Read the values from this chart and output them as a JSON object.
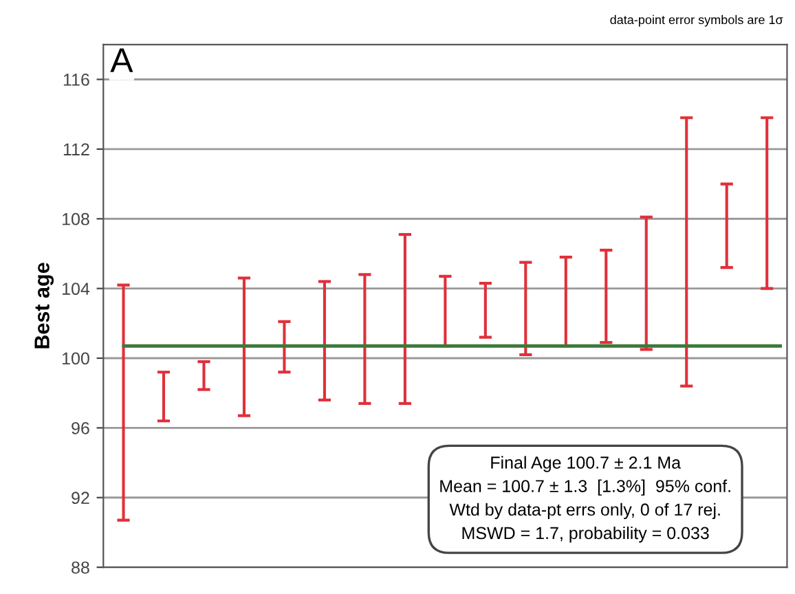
{
  "chart_data": {
    "type": "bar",
    "ylabel": "Best age",
    "categories": [
      null,
      null,
      null,
      null,
      null,
      null,
      null,
      null,
      null,
      null,
      null,
      null,
      null,
      null,
      null,
      null,
      null
    ],
    "series": [
      {
        "color": "#e0303a",
        "base": [
          90.7,
          96.4,
          98.2,
          96.7,
          99.2,
          97.6,
          97.4,
          97.4,
          100.7,
          101.2,
          100.2,
          100.7,
          100.9,
          100.5,
          98.4,
          105.2,
          104.0
        ],
        "values": [
          13.5,
          2.8,
          1.6,
          7.9,
          2.9,
          6.8,
          7.4,
          9.7,
          4.0,
          3.1,
          5.3,
          5.1,
          5.3,
          7.6,
          15.4,
          4.8,
          9.8
        ]
      }
    ],
    "ref_lines": [
      {
        "axis": "y",
        "value": 100.7,
        "color": "#3a7a3a",
        "line_style": "solid"
      }
    ],
    "ylim": [
      88,
      118
    ],
    "yticks": [
      88,
      92,
      96,
      100,
      104,
      108,
      112,
      116
    ],
    "grid": "y",
    "legend": false,
    "annotations": [
      "A",
      "data-point error symbols are 1σ",
      "Final Age 100.7 ± 2.1 Ma",
      "Mean = 100.7 ± 1.3  [1.3%]  95% conf.",
      "Wtd by data-pt errs only, 0 of 17 rej.",
      "MSWD = 1.7, probability = 0.033"
    ]
  }
}
